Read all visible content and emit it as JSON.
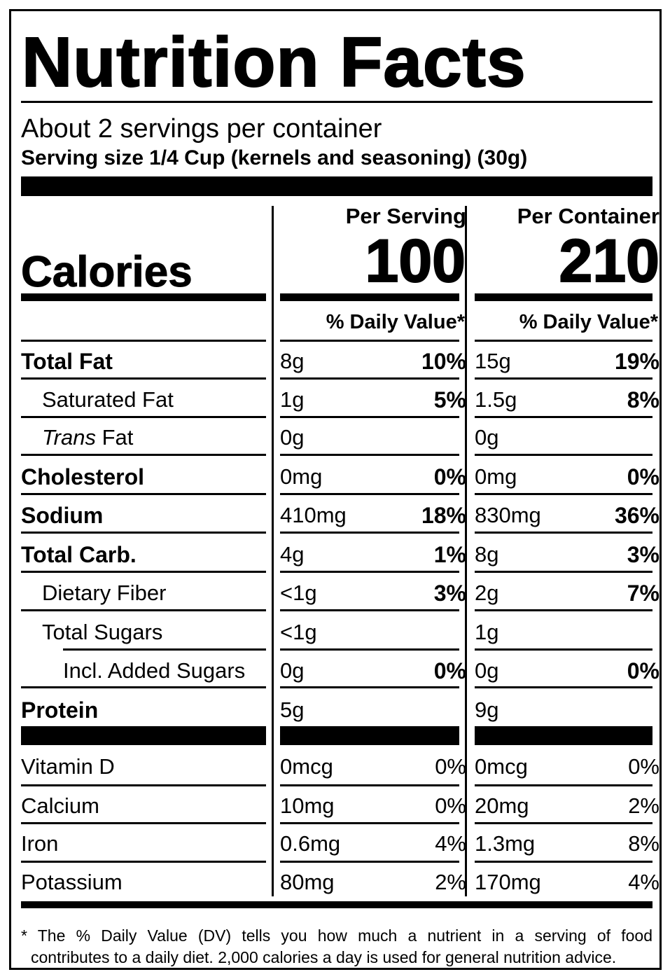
{
  "title": "Nutrition Facts",
  "servings_per_container": "About 2 servings per container",
  "serving_size": {
    "label": "Serving size",
    "value": "1/4 Cup (kernels and seasoning) (30g)"
  },
  "calories": {
    "label": "Calories",
    "per_serving": "100",
    "per_container": "210"
  },
  "columns": {
    "per_serving": "Per Serving",
    "per_container": "Per Container",
    "dv_header": "% Daily Value*"
  },
  "nutrients": [
    {
      "name": "Total Fat",
      "serving_amt": "8g",
      "serving_dv": "10%",
      "container_amt": "15g",
      "container_dv": "19%"
    },
    {
      "name": "Saturated Fat",
      "serving_amt": "1g",
      "serving_dv": "5%",
      "container_amt": "1.5g",
      "container_dv": "8%"
    },
    {
      "name_italic": "Trans",
      "name": " Fat",
      "serving_amt": "0g",
      "serving_dv": "",
      "container_amt": "0g",
      "container_dv": ""
    },
    {
      "name": "Cholesterol",
      "serving_amt": "0mg",
      "serving_dv": "0%",
      "container_amt": "0mg",
      "container_dv": "0%"
    },
    {
      "name": "Sodium",
      "serving_amt": "410mg",
      "serving_dv": "18%",
      "container_amt": "830mg",
      "container_dv": "36%"
    },
    {
      "name": "Total Carb.",
      "serving_amt": "4g",
      "serving_dv": "1%",
      "container_amt": "8g",
      "container_dv": "3%"
    },
    {
      "name": "Dietary Fiber",
      "serving_amt": "<1g",
      "serving_dv": "3%",
      "container_amt": "2g",
      "container_dv": "7%"
    },
    {
      "name": "Total Sugars",
      "serving_amt": "<1g",
      "serving_dv": "",
      "container_amt": "1g",
      "container_dv": ""
    },
    {
      "name": "Incl. Added Sugars",
      "serving_amt": "0g",
      "serving_dv": "0%",
      "container_amt": "0g",
      "container_dv": "0%"
    },
    {
      "name": "Protein",
      "serving_amt": "5g",
      "serving_dv": "",
      "container_amt": "9g",
      "container_dv": ""
    }
  ],
  "vitamins": [
    {
      "name": "Vitamin D",
      "serving_amt": "0mcg",
      "serving_dv": "0%",
      "container_amt": "0mcg",
      "container_dv": "0%"
    },
    {
      "name": "Calcium",
      "serving_amt": "10mg",
      "serving_dv": "0%",
      "container_amt": "20mg",
      "container_dv": "2%"
    },
    {
      "name": "Iron",
      "serving_amt": "0.6mg",
      "serving_dv": "4%",
      "container_amt": "1.3mg",
      "container_dv": "8%"
    },
    {
      "name": "Potassium",
      "serving_amt": "80mg",
      "serving_dv": "2%",
      "container_amt": "170mg",
      "container_dv": "4%"
    }
  ],
  "footnote": {
    "line1": "* The % Daily Value (DV) tells you how much a nutrient in a serving of food",
    "line2": "contributes to a daily diet. 2,000 calories a day is used for general nutrition advice."
  }
}
